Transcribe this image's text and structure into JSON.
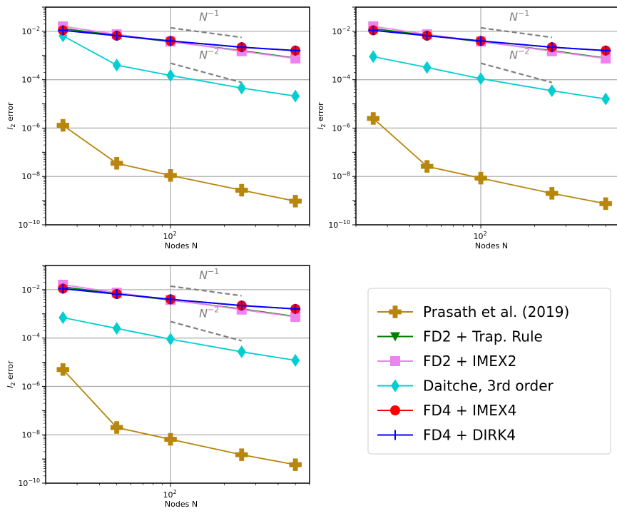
{
  "chart_data": [
    {
      "type": "line",
      "xscale": "log",
      "yscale": "log",
      "xlim": [
        20,
        600
      ],
      "ylim": [
        1e-10,
        0.1
      ],
      "xlabel": "Nodes N",
      "ylabel": "l2 error",
      "grid": true,
      "x": [
        25,
        50,
        100,
        250,
        500
      ],
      "series": [
        {
          "name": "Prasath et al. (2019)",
          "values": [
            1.3e-06,
            3.5e-08,
            1.1e-08,
            2.7e-09,
            9.5e-10
          ]
        },
        {
          "name": "FD2 + Trap. Rule",
          "values": [
            0.013,
            0.0068,
            0.0037,
            0.0016,
            0.00078
          ]
        },
        {
          "name": "FD2 + IMEX2",
          "values": [
            0.016,
            0.0075,
            0.0038,
            0.0015,
            0.00075
          ]
        },
        {
          "name": "Daitche, 3rd order",
          "values": [
            0.0065,
            0.0004,
            0.00015,
            4.5e-05,
            2.1e-05
          ]
        },
        {
          "name": "FD4 + IMEX4",
          "values": [
            0.011,
            0.0066,
            0.004,
            0.0022,
            0.0016
          ]
        },
        {
          "name": "FD4 + DIRK4",
          "values": [
            0.011,
            0.0066,
            0.004,
            0.0022,
            0.0016
          ]
        }
      ],
      "annotations": [
        {
          "text": "N",
          "sup": "−1",
          "slope": -1
        },
        {
          "text": "N",
          "sup": "−2",
          "slope": -2
        }
      ]
    },
    {
      "type": "line",
      "xscale": "log",
      "yscale": "log",
      "xlim": [
        20,
        600
      ],
      "ylim": [
        1e-10,
        0.1
      ],
      "xlabel": "Nodes N",
      "ylabel": "l2 error",
      "grid": true,
      "x": [
        25,
        50,
        100,
        250,
        500
      ],
      "series": [
        {
          "name": "Prasath et al. (2019)",
          "values": [
            2.5e-06,
            2.6e-08,
            8.5e-09,
            2e-09,
            7.5e-10
          ]
        },
        {
          "name": "FD2 + Trap. Rule",
          "values": [
            0.013,
            0.0068,
            0.0037,
            0.0016,
            0.00078
          ]
        },
        {
          "name": "FD2 + IMEX2",
          "values": [
            0.016,
            0.0075,
            0.0038,
            0.0015,
            0.00075
          ]
        },
        {
          "name": "Daitche, 3rd order",
          "values": [
            0.0009,
            0.00032,
            0.00011,
            3.5e-05,
            1.6e-05
          ]
        },
        {
          "name": "FD4 + IMEX4",
          "values": [
            0.011,
            0.0066,
            0.004,
            0.0022,
            0.0016
          ]
        },
        {
          "name": "FD4 + DIRK4",
          "values": [
            0.011,
            0.0066,
            0.004,
            0.0022,
            0.0016
          ]
        }
      ],
      "annotations": [
        {
          "text": "N",
          "sup": "−1",
          "slope": -1
        },
        {
          "text": "N",
          "sup": "−2",
          "slope": -2
        }
      ]
    },
    {
      "type": "line",
      "xscale": "log",
      "yscale": "log",
      "xlim": [
        20,
        600
      ],
      "ylim": [
        1e-10,
        0.1
      ],
      "xlabel": "Nodes N",
      "ylabel": "l2 error",
      "grid": true,
      "x": [
        25,
        50,
        100,
        250,
        500
      ],
      "series": [
        {
          "name": "Prasath et al. (2019)",
          "values": [
            5e-06,
            2e-08,
            6.5e-09,
            1.5e-09,
            5.8e-10
          ]
        },
        {
          "name": "FD2 + Trap. Rule",
          "values": [
            0.013,
            0.0068,
            0.0037,
            0.0016,
            0.00078
          ]
        },
        {
          "name": "FD2 + IMEX2",
          "values": [
            0.016,
            0.0075,
            0.0038,
            0.0015,
            0.00075
          ]
        },
        {
          "name": "Daitche, 3rd order",
          "values": [
            0.0007,
            0.00025,
            9e-05,
            2.7e-05,
            1.2e-05
          ]
        },
        {
          "name": "FD4 + IMEX4",
          "values": [
            0.011,
            0.0066,
            0.004,
            0.0022,
            0.0016
          ]
        },
        {
          "name": "FD4 + DIRK4",
          "values": [
            0.011,
            0.0066,
            0.004,
            0.0022,
            0.0016
          ]
        }
      ],
      "annotations": [
        {
          "text": "N",
          "sup": "−1",
          "slope": -1
        },
        {
          "text": "N",
          "sup": "−2",
          "slope": -2
        }
      ]
    }
  ],
  "legend": {
    "placement": "lower-right",
    "entries": [
      {
        "label": "Prasath et al. (2019)",
        "color": "#b8860b",
        "marker": "plus"
      },
      {
        "label": "FD2 + Trap. Rule",
        "color": "#008000",
        "marker": "triangle-down"
      },
      {
        "label": "FD2 + IMEX2",
        "color": "#ee82ee",
        "marker": "square"
      },
      {
        "label": "Daitche, 3rd order",
        "color": "#00ced1",
        "marker": "thin-diamond"
      },
      {
        "label": "FD4 + IMEX4",
        "color": "#ff0000",
        "marker": "circle"
      },
      {
        "label": "FD4 + DIRK4",
        "color": "#0000ff",
        "marker": "plus-thin"
      }
    ]
  },
  "ticks": {
    "y": [
      {
        "base": "10",
        "exp": "−2",
        "value": 0.01
      },
      {
        "base": "10",
        "exp": "−4",
        "value": 0.0001
      },
      {
        "base": "10",
        "exp": "−6",
        "value": 1e-06
      },
      {
        "base": "10",
        "exp": "−8",
        "value": 1e-08
      },
      {
        "base": "10",
        "exp": "−10",
        "value": 1e-10
      }
    ],
    "x": [
      {
        "base": "10",
        "exp": "2",
        "value": 100
      }
    ]
  },
  "ylabel_parts": {
    "l": "l",
    "sub": "2",
    "rest": " error"
  },
  "colors": {
    "grid": "#b0b0b0",
    "axis": "#000000",
    "guide": "#808080"
  }
}
